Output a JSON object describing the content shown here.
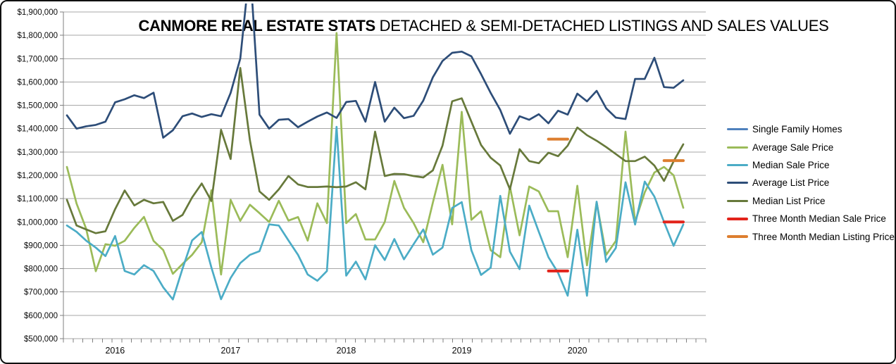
{
  "chart_data": {
    "type": "line",
    "title": {
      "bold": "CANMORE REAL ESTATE STATS",
      "regular": " DETACHED & SEMI-DETACHED LISTINGS AND SALES VALUES"
    },
    "grid": "horizontal",
    "legend_position": "right",
    "ylim": [
      500000,
      1900000
    ],
    "y_tick_interval": 100000,
    "values_unit": "CAD thousands",
    "y_tick_labels": [
      "$1,900,000",
      "$1,800,000",
      "$1,700,000",
      "$1,600,000",
      "$1,500,000",
      "$1,400,000",
      "$1,300,000",
      "$1,200,000",
      "$1,100,000",
      "$1,000,000",
      "$900,000",
      "$800,000",
      "$700,000",
      "$600,000",
      "$500,000"
    ],
    "x_axis_year_labels": [
      {
        "label": "2016",
        "month_index": 5
      },
      {
        "label": "2017",
        "month_index": 17
      },
      {
        "label": "2018",
        "month_index": 29
      },
      {
        "label": "2019",
        "month_index": 41
      },
      {
        "label": "2020",
        "month_index": 53
      }
    ],
    "x": [
      "2015-08",
      "2015-09",
      "2015-10",
      "2015-11",
      "2015-12",
      "2016-01",
      "2016-02",
      "2016-03",
      "2016-04",
      "2016-05",
      "2016-06",
      "2016-07",
      "2016-08",
      "2016-09",
      "2016-10",
      "2016-11",
      "2016-12",
      "2017-01",
      "2017-02",
      "2017-03",
      "2017-04",
      "2017-05",
      "2017-06",
      "2017-07",
      "2017-08",
      "2017-09",
      "2017-10",
      "2017-11",
      "2017-12",
      "2018-01",
      "2018-02",
      "2018-03",
      "2018-04",
      "2018-05",
      "2018-06",
      "2018-07",
      "2018-08",
      "2018-09",
      "2018-10",
      "2018-11",
      "2018-12",
      "2019-01",
      "2019-02",
      "2019-03",
      "2019-04",
      "2019-05",
      "2019-06",
      "2019-07",
      "2019-08",
      "2019-09",
      "2019-10",
      "2019-11",
      "2019-12",
      "2020-01",
      "2020-02",
      "2020-03",
      "2020-04",
      "2020-05",
      "2020-06",
      "2020-07",
      "2020-08",
      "2020-09",
      "2020-10",
      "2020-11",
      "2020-12"
    ],
    "series": [
      {
        "name": "Single Family Homes",
        "color": "#4F81BD",
        "values": null,
        "visible_in_plot": false,
        "note": "legend entry only - line not visible within the charted axis range"
      },
      {
        "name": "Average Sale Price",
        "color": "#9BBB59",
        "stroke_width": 2.7,
        "values": [
          1236,
          1079,
          971,
          789,
          905,
          898,
          919,
          975,
          1022,
          919,
          880,
          778,
          820,
          859,
          913,
          1136,
          775,
          1095,
          1005,
          1074,
          1038,
          1000,
          1091,
          1006,
          1021,
          920,
          1080,
          995,
          1810,
          995,
          1034,
          925,
          925,
          1000,
          1176,
          1061,
          995,
          913,
          1083,
          1245,
          990,
          1472,
          1009,
          1046,
          879,
          849,
          1152,
          943,
          1152,
          1131,
          1046,
          1046,
          849,
          1155,
          814,
          1085,
          859,
          919,
          1387,
          1001,
          1127,
          1212,
          1236,
          1200,
          1061
        ]
      },
      {
        "name": "Median Sale Price",
        "color": "#4BACC6",
        "stroke_width": 2.7,
        "values": [
          985,
          958,
          920,
          890,
          854,
          940,
          790,
          775,
          815,
          790,
          720,
          668,
          800,
          921,
          957,
          805,
          669,
          760,
          824,
          859,
          875,
          990,
          985,
          921,
          859,
          775,
          748,
          790,
          1408,
          770,
          830,
          754,
          900,
          837,
          927,
          840,
          905,
          968,
          860,
          890,
          1060,
          1085,
          879,
          773,
          804,
          1112,
          873,
          798,
          1070,
          958,
          849,
          782,
          684,
          967,
          684,
          1087,
          829,
          889,
          1170,
          989,
          1173,
          1109,
          1000,
          898,
          989
        ]
      },
      {
        "name": "Average List Price",
        "color": "#2D4D78",
        "stroke_width": 2.7,
        "values": [
          1457,
          1400,
          1410,
          1416,
          1430,
          1513,
          1526,
          1543,
          1531,
          1554,
          1361,
          1393,
          1453,
          1465,
          1450,
          1462,
          1453,
          1553,
          1700,
          2100,
          1460,
          1400,
          1438,
          1441,
          1406,
          1430,
          1452,
          1469,
          1446,
          1514,
          1519,
          1430,
          1600,
          1430,
          1490,
          1445,
          1455,
          1520,
          1620,
          1690,
          1725,
          1730,
          1710,
          1634,
          1553,
          1480,
          1378,
          1453,
          1438,
          1462,
          1423,
          1477,
          1460,
          1550,
          1517,
          1562,
          1487,
          1447,
          1441,
          1613,
          1613,
          1704,
          1578,
          1575,
          1607
        ]
      },
      {
        "name": "Median List Price",
        "color": "#67793B",
        "stroke_width": 2.7,
        "values": [
          1095,
          985,
          968,
          952,
          960,
          1055,
          1135,
          1071,
          1095,
          1080,
          1086,
          1005,
          1030,
          1105,
          1165,
          1090,
          1395,
          1270,
          1660,
          1350,
          1131,
          1095,
          1140,
          1197,
          1161,
          1150,
          1150,
          1152,
          1149,
          1152,
          1170,
          1140,
          1387,
          1197,
          1206,
          1205,
          1197,
          1191,
          1221,
          1327,
          1517,
          1530,
          1430,
          1330,
          1275,
          1242,
          1140,
          1312,
          1261,
          1252,
          1297,
          1282,
          1327,
          1405,
          1372,
          1348,
          1321,
          1291,
          1261,
          1261,
          1280,
          1242,
          1176,
          1260,
          1333
        ]
      },
      {
        "name": "Three Month Median Sale Price",
        "color": "#E2231A",
        "stroke_width": 4,
        "values": null,
        "segments": [
          {
            "start_index": 50,
            "values": [
              790,
              790,
              790
            ]
          },
          {
            "start_index": 62,
            "values": [
              1000,
              1000,
              1000
            ]
          }
        ]
      },
      {
        "name": "Three Month Median Listing Price",
        "color": "#DD7E2F",
        "stroke_width": 4,
        "values": null,
        "segments": [
          {
            "start_index": 50,
            "values": [
              1355,
              1355,
              1355
            ]
          },
          {
            "start_index": 62,
            "values": [
              1263,
              1263,
              1263
            ]
          }
        ]
      }
    ]
  }
}
